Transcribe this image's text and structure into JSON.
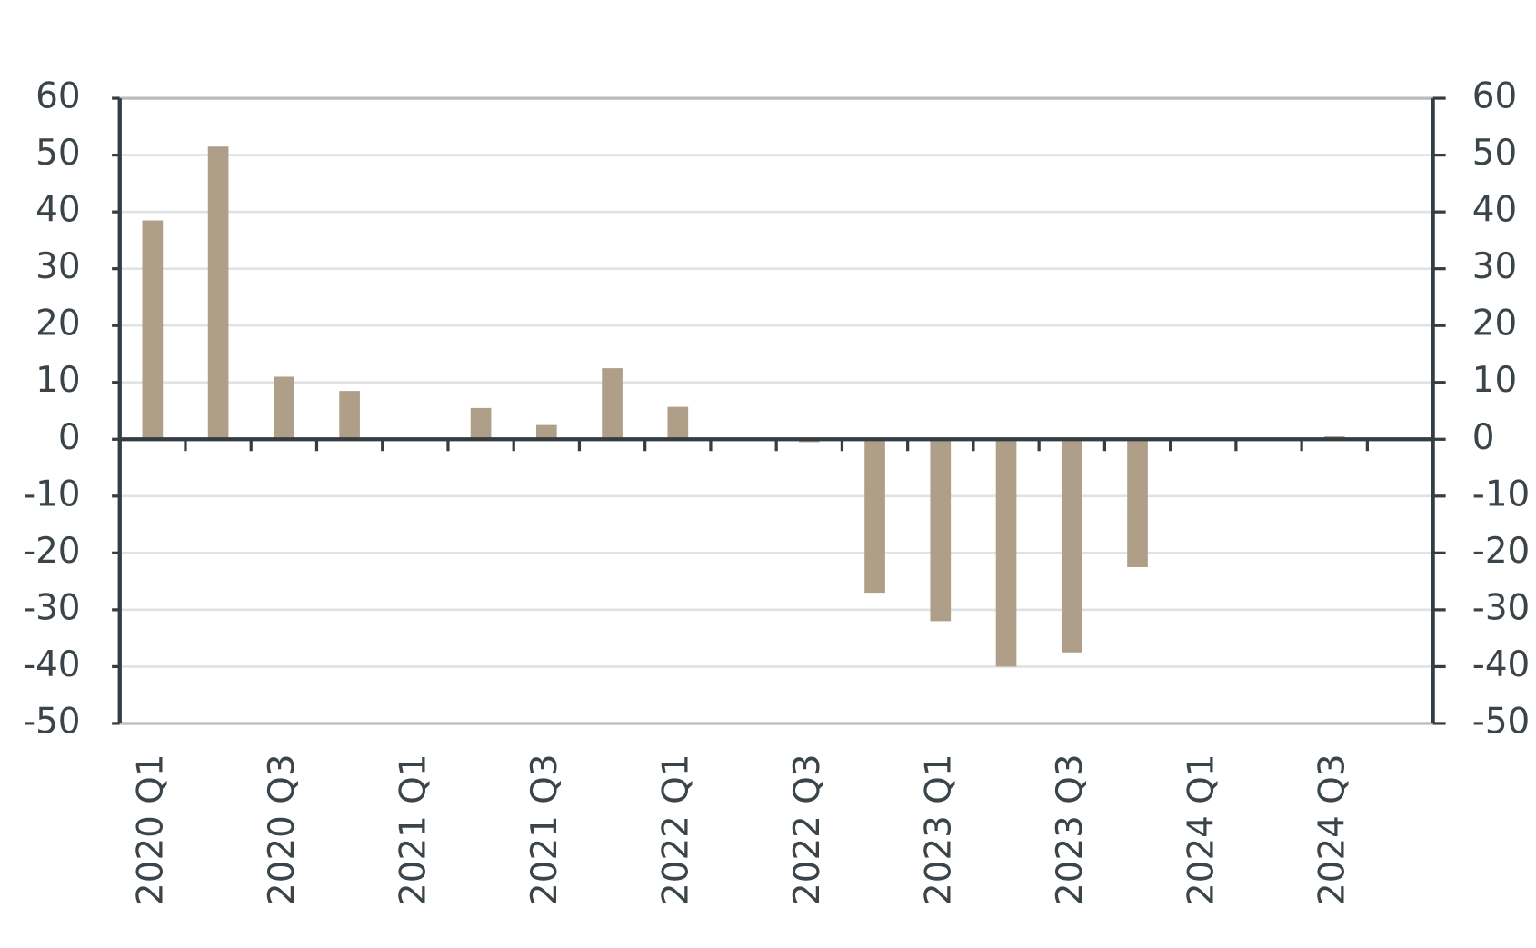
{
  "chart_data": {
    "type": "bar",
    "categories": [
      "2020 Q1",
      null,
      "2020 Q3",
      null,
      "2021 Q1",
      null,
      "2021 Q3",
      null,
      "2022 Q1",
      null,
      "2022 Q3",
      null,
      "2023 Q1",
      null,
      "2023 Q3",
      null,
      "2024 Q1",
      null,
      "2024 Q3",
      null
    ],
    "values": [
      38.5,
      51.5,
      11,
      8.5,
      0,
      5.5,
      2.5,
      12.5,
      5.7,
      0,
      -0.5,
      -27,
      -32,
      -40,
      -37.5,
      -22.5,
      0,
      0,
      0.5,
      0
    ],
    "color": "#b09f88",
    "ylim": [
      -50,
      60
    ],
    "yticks": [
      -50,
      -40,
      -30,
      -20,
      -10,
      0,
      10,
      20,
      30,
      40,
      50,
      60
    ],
    "y2lim": [
      -50,
      60
    ],
    "y2ticks": [
      -50,
      -40,
      -30,
      -20,
      -10,
      0,
      10,
      20,
      30,
      40,
      50,
      60
    ],
    "grid": true
  }
}
